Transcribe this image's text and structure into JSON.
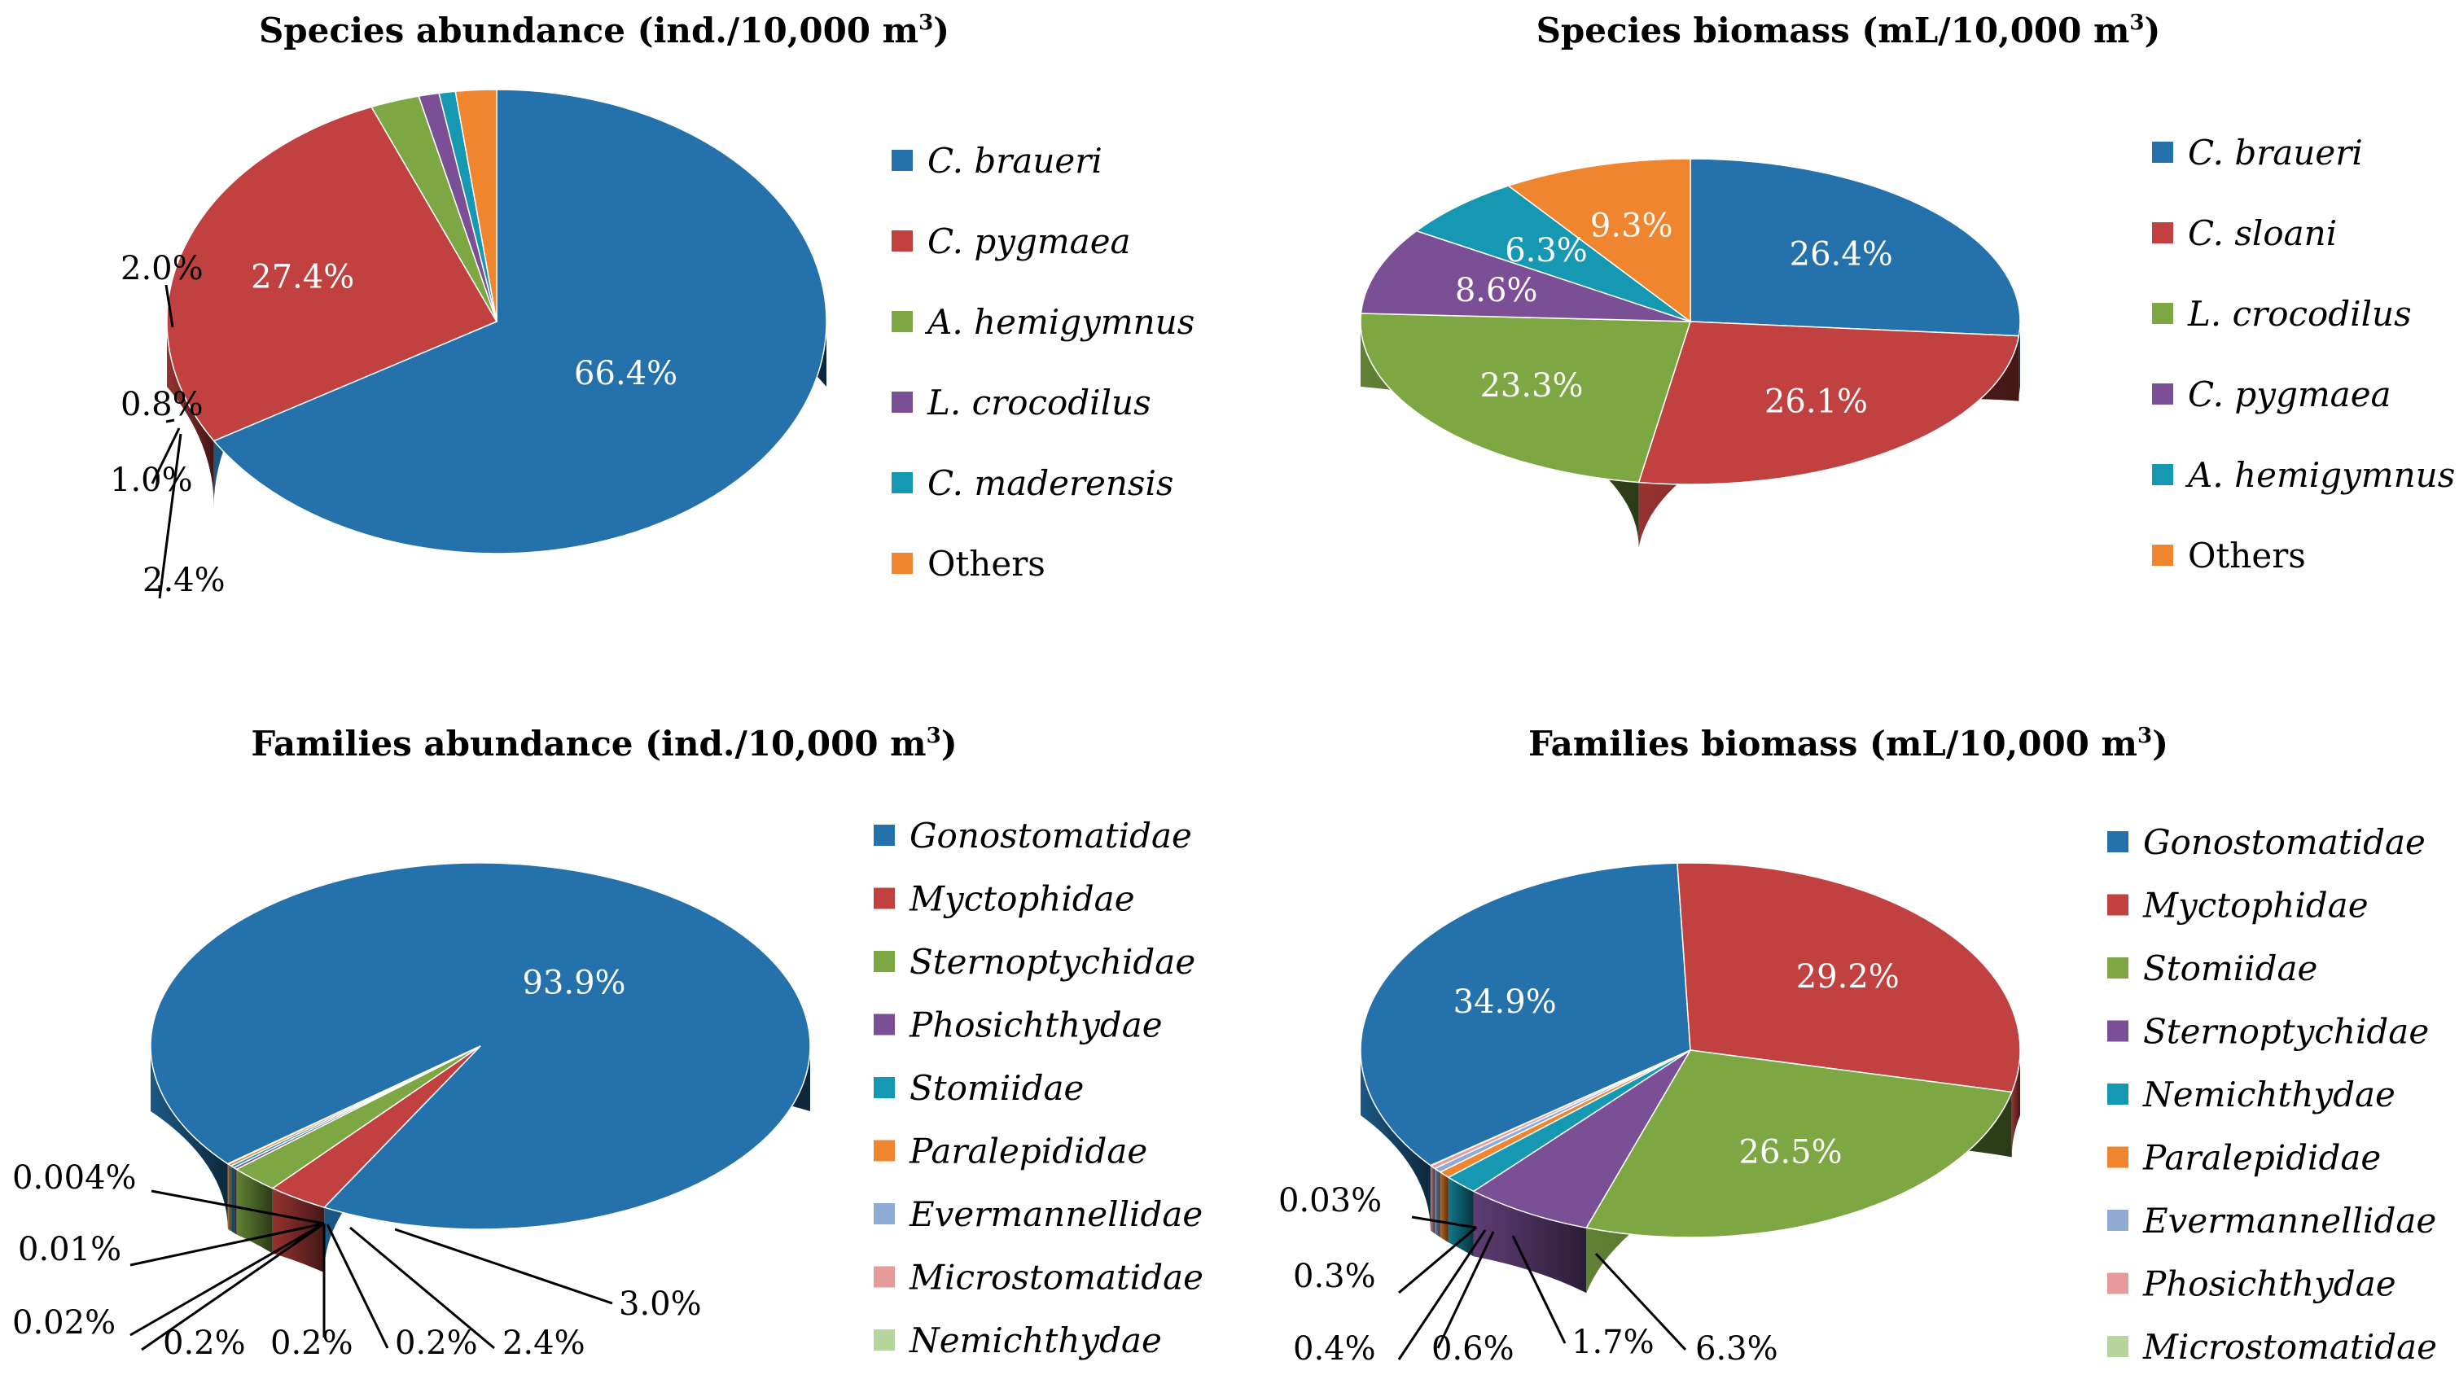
{
  "palette": {
    "blue": "#2471ab",
    "red": "#c0413f",
    "green": "#7ca743",
    "purple": "#7a4f96",
    "teal": "#1798b2",
    "orange": "#f0852f",
    "lightblue": "#8eabd4",
    "pink": "#e79a9a",
    "lightgreen": "#b6d59c"
  },
  "chart_data": [
    {
      "type": "pie",
      "title": "Species abundance (ind./10,000 m",
      "title_sup": "3",
      "title_end": ")",
      "slices": [
        {
          "label": "C. braueri",
          "value": 66.4,
          "value_label": "66.4%",
          "color": "blue",
          "italic": true
        },
        {
          "label": "C. pygmaea",
          "value": 27.4,
          "value_label": "27.4%",
          "color": "red",
          "italic": true
        },
        {
          "label": "A. hemigymnus",
          "value": 2.4,
          "value_label": "2.4%",
          "color": "green",
          "italic": true
        },
        {
          "label": "L. crocodilus",
          "value": 1.0,
          "value_label": "1.0%",
          "color": "purple",
          "italic": true
        },
        {
          "label": "C. maderensis",
          "value": 0.8,
          "value_label": "0.8%",
          "color": "teal",
          "italic": true
        },
        {
          "label": "Others",
          "value": 2.0,
          "value_label": "2.0%",
          "color": "orange",
          "italic": false
        }
      ]
    },
    {
      "type": "pie",
      "title": "Species biomass (mL/10,000 m",
      "title_sup": "3",
      "title_end": ")",
      "slices": [
        {
          "label": "C. braueri",
          "value": 26.4,
          "value_label": "26.4%",
          "color": "blue",
          "italic": true
        },
        {
          "label": "C. sloani",
          "value": 26.1,
          "value_label": "26.1%",
          "color": "red",
          "italic": true
        },
        {
          "label": "L. crocodilus",
          "value": 23.3,
          "value_label": "23.3%",
          "color": "green",
          "italic": true
        },
        {
          "label": "C. pygmaea",
          "value": 8.6,
          "value_label": "8.6%",
          "color": "purple",
          "italic": true
        },
        {
          "label": "A. hemigymnus",
          "value": 6.3,
          "value_label": "6.3%",
          "color": "teal",
          "italic": true
        },
        {
          "label": "Others",
          "value": 9.3,
          "value_label": "9.3%",
          "color": "orange",
          "italic": false
        }
      ]
    },
    {
      "type": "pie",
      "title": "Families abundance (ind./10,000 m",
      "title_sup": "3",
      "title_end": ")",
      "slices": [
        {
          "label": "Gonostomatidae",
          "value": 93.9,
          "value_label": "93.9%",
          "color": "blue",
          "italic": true
        },
        {
          "label": "Myctophidae",
          "value": 3.0,
          "value_label": "3.0%",
          "color": "red",
          "italic": true
        },
        {
          "label": "Sternoptychidae",
          "value": 2.4,
          "value_label": "2.4%",
          "color": "green",
          "italic": true
        },
        {
          "label": "Phosichthydae",
          "value": 0.2,
          "value_label": "0.2%",
          "color": "purple",
          "italic": true
        },
        {
          "label": "Stomiidae",
          "value": 0.2,
          "value_label": "0.2%",
          "color": "teal",
          "italic": true
        },
        {
          "label": "Paralepididae",
          "value": 0.2,
          "value_label": "0.2%",
          "color": "orange",
          "italic": true
        },
        {
          "label": "Evermannellidae",
          "value": 0.02,
          "value_label": "0.02%",
          "color": "lightblue",
          "italic": true
        },
        {
          "label": "Microstomatidae",
          "value": 0.01,
          "value_label": "0.01%",
          "color": "pink",
          "italic": true
        },
        {
          "label": "Nemichthydae",
          "value": 0.004,
          "value_label": "0.004%",
          "color": "lightgreen",
          "italic": true
        }
      ]
    },
    {
      "type": "pie",
      "title": "Families biomass (mL/10,000 m",
      "title_sup": "3",
      "title_end": ")",
      "slices": [
        {
          "label": "Gonostomatidae",
          "value": 34.9,
          "value_label": "34.9%",
          "color": "blue",
          "italic": true
        },
        {
          "label": "Myctophidae",
          "value": 29.2,
          "value_label": "29.2%",
          "color": "red",
          "italic": true
        },
        {
          "label": "Stomiidae",
          "value": 26.5,
          "value_label": "26.5%",
          "color": "green",
          "italic": true
        },
        {
          "label": "Sternoptychidae",
          "value": 6.3,
          "value_label": "6.3%",
          "color": "purple",
          "italic": true
        },
        {
          "label": "Nemichthydae",
          "value": 1.7,
          "value_label": "1.7%",
          "color": "teal",
          "italic": true
        },
        {
          "label": "Paralepididae",
          "value": 0.6,
          "value_label": "0.6%",
          "color": "orange",
          "italic": true
        },
        {
          "label": "Evermannellidae",
          "value": 0.4,
          "value_label": "0.4%",
          "color": "lightblue",
          "italic": true
        },
        {
          "label": "Phosichthydae",
          "value": 0.3,
          "value_label": "0.3%",
          "color": "pink",
          "italic": true
        },
        {
          "label": "Microstomatidae",
          "value": 0.03,
          "value_label": "0.03%",
          "color": "lightgreen",
          "italic": true
        }
      ]
    }
  ]
}
